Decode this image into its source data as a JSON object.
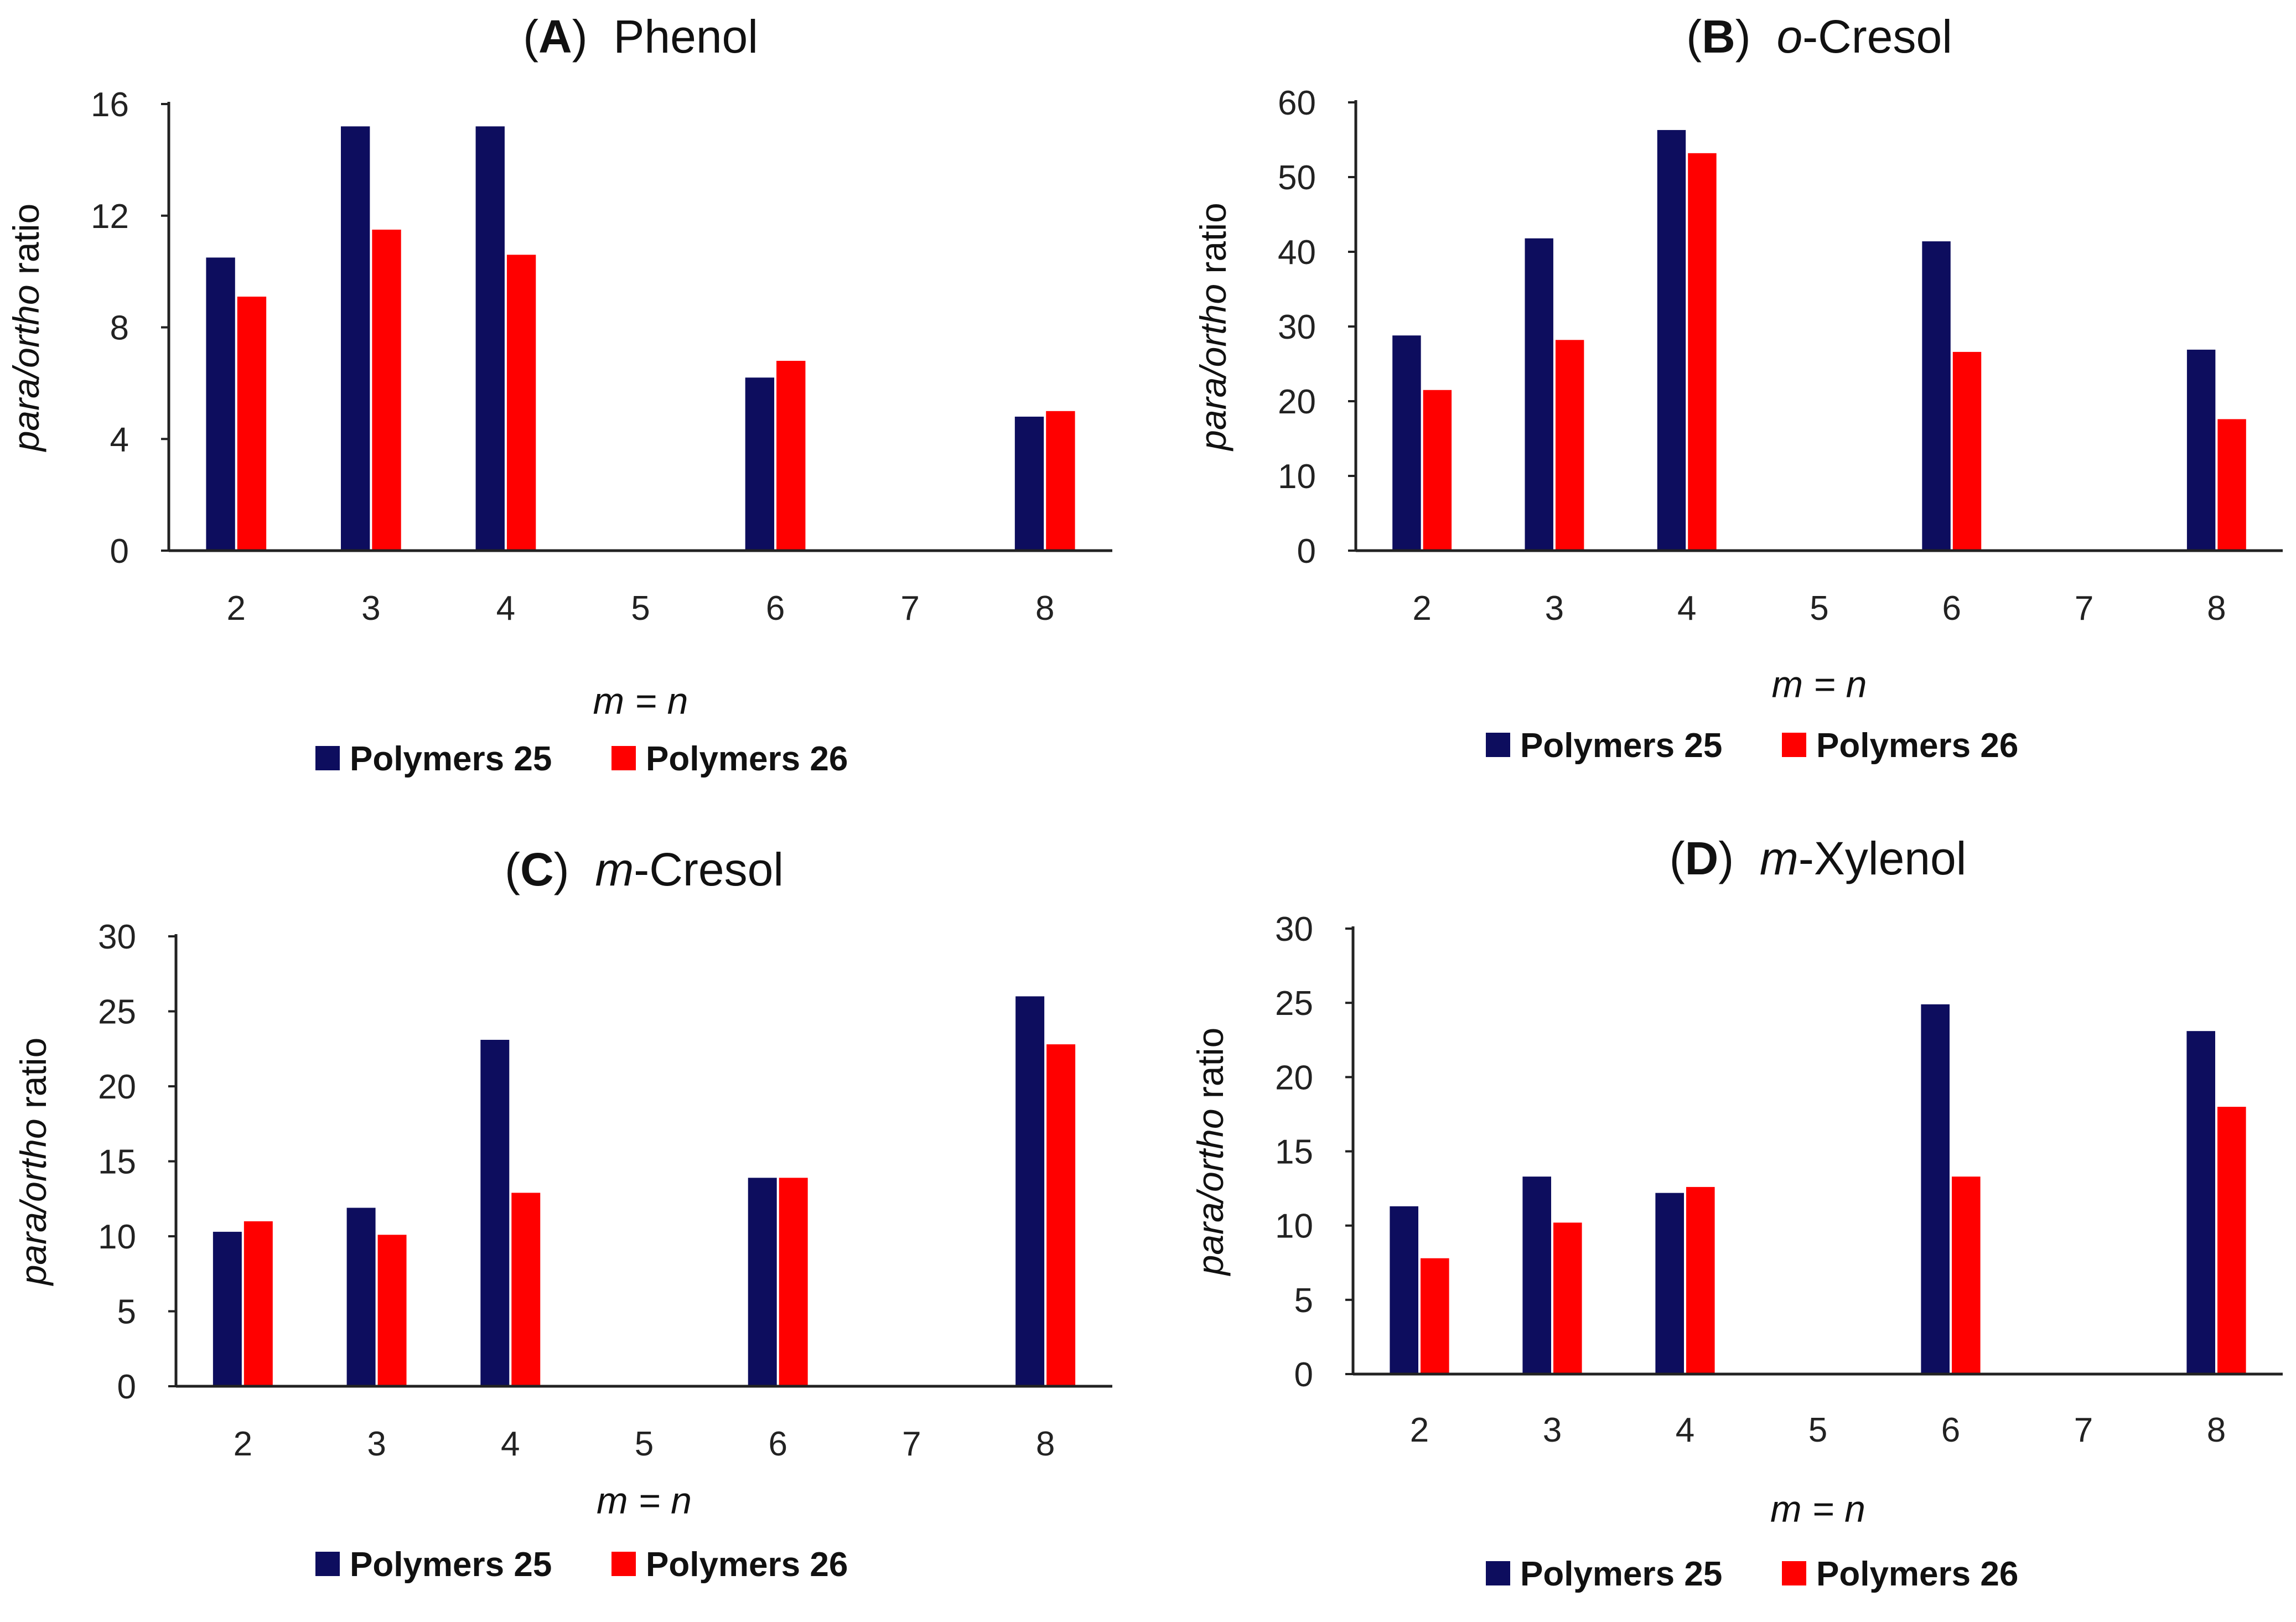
{
  "chart_data": [
    {
      "type": "bar",
      "panel": "A",
      "title_letter": "A",
      "title_prefix": "",
      "title_rest": "Phenol",
      "categories": [
        "2",
        "3",
        "4",
        "5",
        "6",
        "7",
        "8"
      ],
      "series": [
        {
          "name": "Polymers 25",
          "color": "#0d0d5e",
          "values": [
            10.5,
            15.2,
            15.2,
            null,
            6.2,
            null,
            4.8
          ]
        },
        {
          "name": "Polymers 26",
          "color": "#ff0000",
          "values": [
            9.1,
            11.5,
            10.6,
            null,
            6.8,
            null,
            5.0
          ]
        }
      ],
      "ylim": [
        0,
        16
      ],
      "yticks": [
        "0",
        "4",
        "8",
        "12",
        "16"
      ],
      "ylabel_italic": "para/ortho",
      "ylabel_rest": " ratio",
      "xlabel": "m = n",
      "legend": [
        "Polymers 25",
        "Polymers 26"
      ]
    },
    {
      "type": "bar",
      "panel": "B",
      "title_letter": "B",
      "title_prefix": "o",
      "title_rest": "-Cresol",
      "categories": [
        "2",
        "3",
        "4",
        "5",
        "6",
        "7",
        "8"
      ],
      "series": [
        {
          "name": "Polymers 25",
          "color": "#0d0d5e",
          "values": [
            28.8,
            41.8,
            56.3,
            null,
            41.4,
            null,
            26.9
          ]
        },
        {
          "name": "Polymers 26",
          "color": "#ff0000",
          "values": [
            21.5,
            28.2,
            53.2,
            null,
            26.6,
            null,
            17.6
          ]
        }
      ],
      "ylim": [
        0,
        60
      ],
      "yticks": [
        "0",
        "10",
        "20",
        "30",
        "40",
        "50",
        "60"
      ],
      "ylabel_italic": "para/ortho",
      "ylabel_rest": " ratio",
      "xlabel": "m = n",
      "legend": [
        "Polymers 25",
        "Polymers 26"
      ]
    },
    {
      "type": "bar",
      "panel": "C",
      "title_letter": "C",
      "title_prefix": "m",
      "title_rest": "-Cresol",
      "categories": [
        "2",
        "3",
        "4",
        "5",
        "6",
        "7",
        "8"
      ],
      "series": [
        {
          "name": "Polymers 25",
          "color": "#0d0d5e",
          "values": [
            10.3,
            11.9,
            23.1,
            null,
            13.9,
            null,
            26.0
          ]
        },
        {
          "name": "Polymers 26",
          "color": "#ff0000",
          "values": [
            11.0,
            10.1,
            12.9,
            null,
            13.9,
            null,
            22.8
          ]
        }
      ],
      "ylim": [
        0,
        30
      ],
      "yticks": [
        "0",
        "5",
        "10",
        "15",
        "20",
        "25",
        "30"
      ],
      "ylabel_italic": "para/ortho",
      "ylabel_rest": " ratio",
      "xlabel": "m = n",
      "legend": [
        "Polymers 25",
        "Polymers 26"
      ]
    },
    {
      "type": "bar",
      "panel": "D",
      "title_letter": "D",
      "title_prefix": "m",
      "title_rest": "-Xylenol",
      "categories": [
        "2",
        "3",
        "4",
        "5",
        "6",
        "7",
        "8"
      ],
      "series": [
        {
          "name": "Polymers 25",
          "color": "#0d0d5e",
          "values": [
            11.3,
            13.3,
            12.2,
            null,
            24.9,
            null,
            23.1
          ]
        },
        {
          "name": "Polymers 26",
          "color": "#ff0000",
          "values": [
            7.8,
            10.2,
            12.6,
            null,
            13.3,
            null,
            18.0
          ]
        }
      ],
      "ylim": [
        0,
        30
      ],
      "yticks": [
        "0",
        "5",
        "10",
        "15",
        "20",
        "25",
        "30"
      ],
      "ylabel_italic": "para/ortho",
      "ylabel_rest": " ratio",
      "xlabel": "m = n",
      "legend": [
        "Polymers 25",
        "Polymers 26"
      ]
    }
  ]
}
